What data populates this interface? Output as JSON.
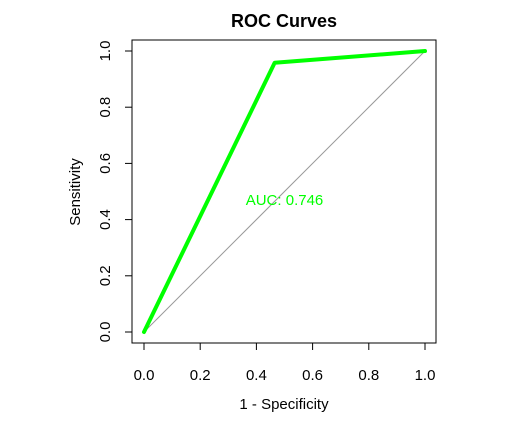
{
  "chart_data": {
    "type": "line",
    "title": "ROC Curves",
    "xlabel": "1 - Specificity",
    "ylabel": "Sensitivity",
    "xlim": [
      0,
      1
    ],
    "ylim": [
      0,
      1
    ],
    "x_ticks": [
      "0.0",
      "0.2",
      "0.4",
      "0.6",
      "0.8",
      "1.0"
    ],
    "y_ticks": [
      "0.0",
      "0.2",
      "0.4",
      "0.6",
      "0.8",
      "1.0"
    ],
    "grid": false,
    "series": [
      {
        "x": [
          0.0,
          0.465,
          1.0
        ],
        "y": [
          0.0,
          0.958,
          1.0
        ],
        "color": "#00ff00"
      }
    ],
    "reference_line": {
      "x": [
        0.0,
        1.0
      ],
      "y": [
        0.0,
        1.0
      ],
      "color": "#999999"
    },
    "annotation": {
      "text": "AUC: 0.746",
      "x": 0.5,
      "y": 0.47,
      "color": "#00ff00"
    }
  }
}
